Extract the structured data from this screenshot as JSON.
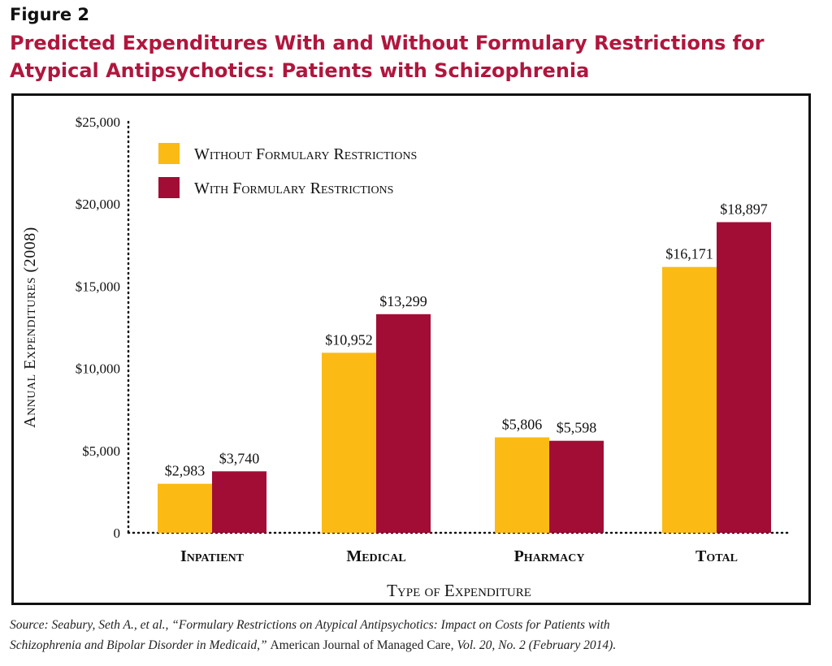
{
  "figure_label": "Figure 2",
  "title_line1": "Predicted Expenditures With and Without Formulary Restrictions for",
  "title_line2": "Atypical Antipsychotics: Patients with Schizophrenia",
  "source": {
    "part1": "Source: Seabury, Seth A., et al., “Formulary Restrictions on Atypical Antipsychotics: Impact on Costs for Patients with",
    "part2": "Schizophrenia and Bipolar Disorder in Medicaid,” ",
    "journal": "American Journal of Managed Care",
    "part3": ", Vol. 20, No. 2 (February 2014)."
  },
  "colors": {
    "without": "#fbbb14",
    "with": "#a20d35",
    "title": "#b0163d"
  },
  "chart_data": {
    "type": "bar",
    "categories": [
      "Inpatient",
      "Medical",
      "Pharmacy",
      "Total"
    ],
    "series": [
      {
        "name": "Without Formulary Restrictions",
        "values": [
          2983,
          10952,
          5806,
          16171
        ],
        "labels": [
          "$2,983",
          "$10,952",
          "$5,806",
          "$16,171"
        ]
      },
      {
        "name": "With Formulary Restrictions",
        "values": [
          3740,
          13299,
          5598,
          18897
        ],
        "labels": [
          "$3,740",
          "$13,299",
          "$5,598",
          "$18,897"
        ]
      }
    ],
    "xlabel": "Type of Expenditure",
    "ylabel": "Annual Expenditures (2008)",
    "ylim": [
      0,
      25000
    ],
    "yticks": [
      0,
      5000,
      10000,
      15000,
      20000,
      25000
    ],
    "ytick_labels": [
      "0",
      "$5,000",
      "$10,000",
      "$15,000",
      "$20,000",
      "$25,000"
    ],
    "legend_position": "top-left",
    "grid": false
  }
}
